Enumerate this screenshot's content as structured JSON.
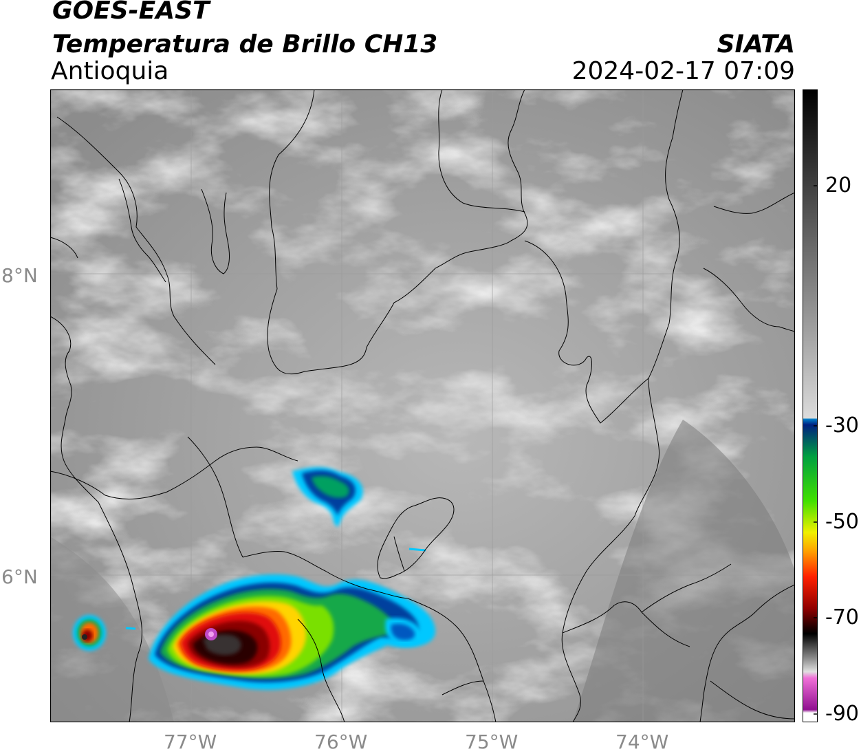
{
  "header": {
    "satellite": "GOES-EAST",
    "product": "Temperatura de Brillo CH13",
    "region": "Antioquia",
    "agency": "SIATA",
    "datetime": "2024-02-17 07:09"
  },
  "map": {
    "lat_labels": [
      {
        "label": "8°N",
        "value": 8
      },
      {
        "label": "6°N",
        "value": 6
      }
    ],
    "lon_labels": [
      {
        "label": "77°W",
        "value": -77
      },
      {
        "label": "76°W",
        "value": -76
      },
      {
        "label": "75°W",
        "value": -75
      },
      {
        "label": "74°W",
        "value": -74
      }
    ],
    "extent": {
      "lon_min": -77.95,
      "lon_max": -73.0,
      "lat_min": 5.0,
      "lat_max": 9.2
    },
    "storm_cells": [
      {
        "lon": -76.7,
        "lat": 5.45,
        "min_temp": -85
      },
      {
        "lon": -76.2,
        "lat": 6.55,
        "min_temp": -40
      },
      {
        "lon": -77.65,
        "lat": 5.5,
        "min_temp": -70
      },
      {
        "lon": -75.75,
        "lat": 5.6,
        "min_temp": -30
      }
    ]
  },
  "colorbar": {
    "ticks": [
      {
        "label": "20",
        "value": 20
      },
      {
        "label": "-30",
        "value": -30
      },
      {
        "label": "-50",
        "value": -50
      },
      {
        "label": "-70",
        "value": -70
      },
      {
        "label": "-90",
        "value": -90
      }
    ],
    "range": [
      -90,
      40
    ]
  }
}
